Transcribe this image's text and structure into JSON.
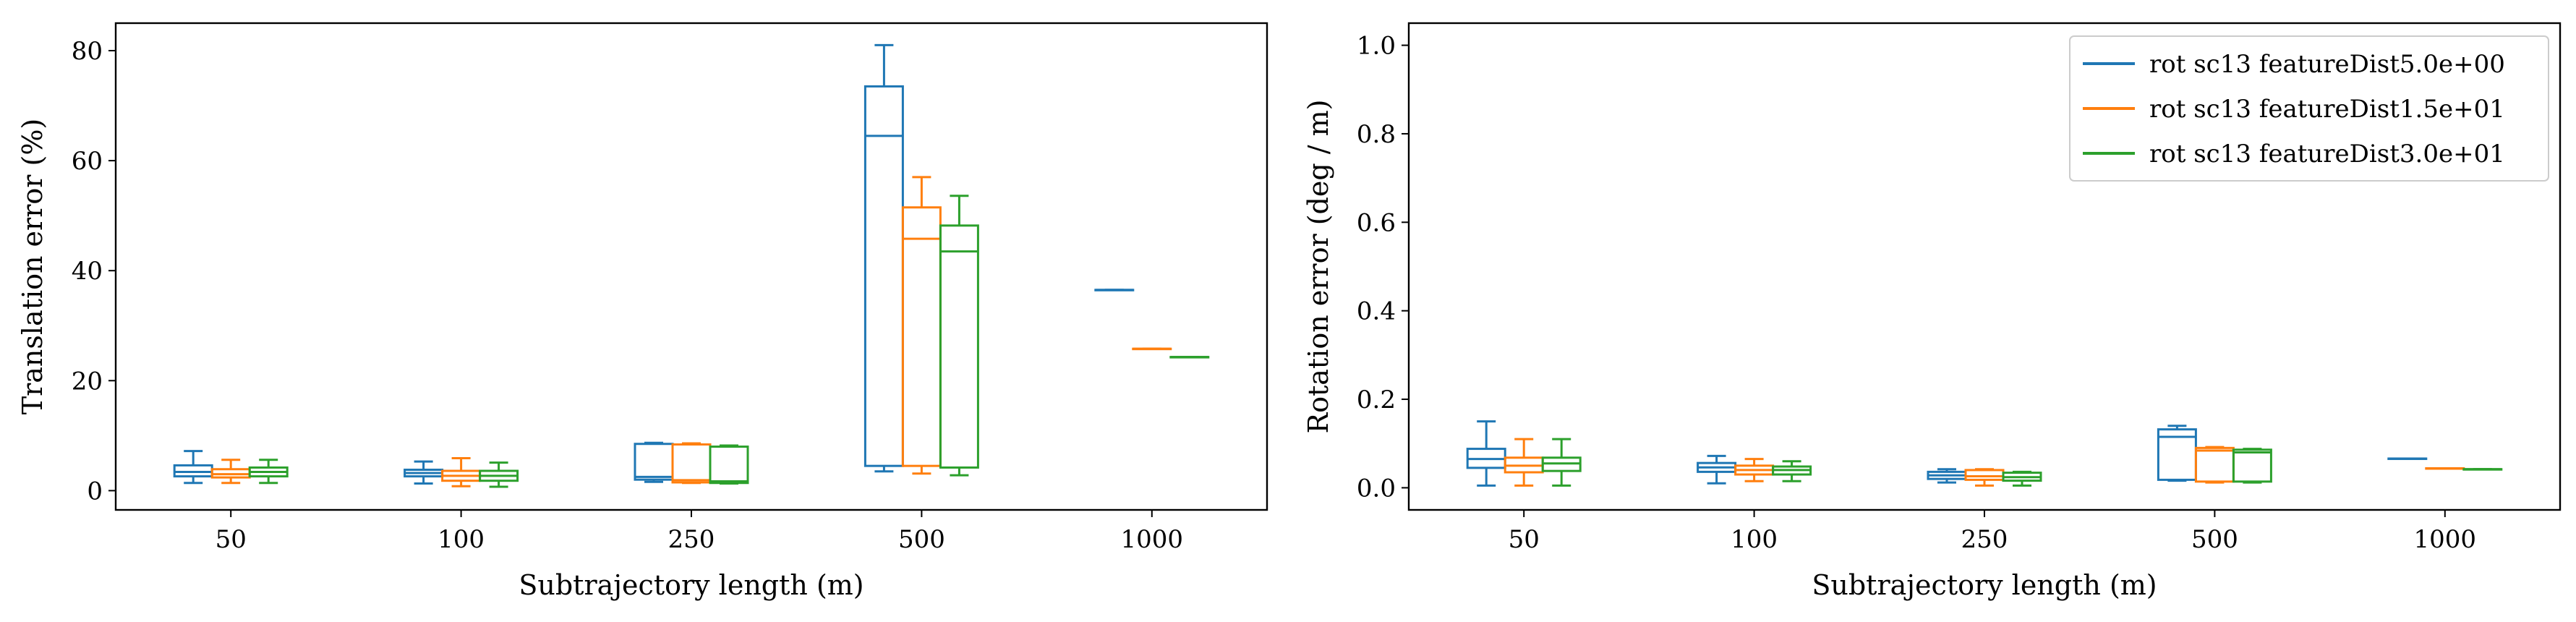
{
  "chart_data": [
    {
      "type": "box",
      "xlabel": "Subtrajectory length (m)",
      "ylabel": "Translation error (%)",
      "categories": [
        "50",
        "100",
        "250",
        "500",
        "1000"
      ],
      "ylim": [
        -3.5,
        85
      ],
      "yticks": [
        0,
        20,
        40,
        60,
        80
      ],
      "grid": false,
      "series": [
        {
          "color": "#1f77b4",
          "boxes": [
            {
              "whislo": 1.4,
              "q1": 2.6,
              "med": 3.4,
              "q3": 4.6,
              "whishi": 7.2
            },
            {
              "whislo": 1.3,
              "q1": 2.6,
              "med": 3.2,
              "q3": 3.8,
              "whishi": 5.3
            },
            {
              "whislo": 1.6,
              "q1": 2.0,
              "med": 2.5,
              "q3": 8.5,
              "whishi": 8.7
            },
            {
              "whislo": 3.5,
              "q1": 4.5,
              "med": 64.5,
              "q3": 73.5,
              "whishi": 81
            },
            {
              "whislo": 36.5,
              "q1": 36.5,
              "med": 36.5,
              "q3": 36.5,
              "whishi": 36.5
            }
          ]
        },
        {
          "color": "#ff7f0e",
          "boxes": [
            {
              "whislo": 1.4,
              "q1": 2.4,
              "med": 3.0,
              "q3": 3.9,
              "whishi": 5.6
            },
            {
              "whislo": 0.8,
              "q1": 1.8,
              "med": 2.7,
              "q3": 3.6,
              "whishi": 5.9
            },
            {
              "whislo": 1.4,
              "q1": 1.5,
              "med": 1.9,
              "q3": 8.4,
              "whishi": 8.6
            },
            {
              "whislo": 3.1,
              "q1": 4.5,
              "med": 45.8,
              "q3": 51.5,
              "whishi": 57
            },
            {
              "whislo": 25.8,
              "q1": 25.8,
              "med": 25.8,
              "q3": 25.8,
              "whishi": 25.8
            }
          ]
        },
        {
          "color": "#2ca02c",
          "boxes": [
            {
              "whislo": 1.4,
              "q1": 2.6,
              "med": 3.4,
              "q3": 4.2,
              "whishi": 5.6
            },
            {
              "whislo": 0.7,
              "q1": 1.8,
              "med": 2.7,
              "q3": 3.6,
              "whishi": 5.1
            },
            {
              "whislo": 1.3,
              "q1": 1.4,
              "med": 1.7,
              "q3": 8.0,
              "whishi": 8.2
            },
            {
              "whislo": 2.8,
              "q1": 4.2,
              "med": 43.5,
              "q3": 48.2,
              "whishi": 53.6
            },
            {
              "whislo": 24.3,
              "q1": 24.3,
              "med": 24.3,
              "q3": 24.3,
              "whishi": 24.3
            }
          ]
        }
      ]
    },
    {
      "type": "box",
      "xlabel": "Subtrajectory length (m)",
      "ylabel": "Rotation error (deg / m)",
      "categories": [
        "50",
        "100",
        "250",
        "500",
        "1000"
      ],
      "ylim": [
        -0.05,
        1.05
      ],
      "yticks": [
        "0.0",
        "0.2",
        "0.4",
        "0.6",
        "0.8",
        "1.0"
      ],
      "grid": false,
      "legend": {
        "placement": "top-right",
        "entries": [
          {
            "label": "rot sc13 featureDist5.0e+00",
            "color": "#1f77b4"
          },
          {
            "label": "rot sc13 featureDist1.5e+01",
            "color": "#ff7f0e"
          },
          {
            "label": "rot sc13 featureDist3.0e+01",
            "color": "#2ca02c"
          }
        ]
      },
      "series": [
        {
          "color": "#1f77b4",
          "boxes": [
            {
              "whislo": 0.005,
              "q1": 0.045,
              "med": 0.065,
              "q3": 0.088,
              "whishi": 0.15
            },
            {
              "whislo": 0.01,
              "q1": 0.036,
              "med": 0.046,
              "q3": 0.056,
              "whishi": 0.072
            },
            {
              "whislo": 0.012,
              "q1": 0.02,
              "med": 0.028,
              "q3": 0.036,
              "whishi": 0.042
            },
            {
              "whislo": 0.016,
              "q1": 0.018,
              "med": 0.115,
              "q3": 0.132,
              "whishi": 0.14
            },
            {
              "whislo": 0.066,
              "q1": 0.066,
              "med": 0.066,
              "q3": 0.066,
              "whishi": 0.066
            }
          ]
        },
        {
          "color": "#ff7f0e",
          "boxes": [
            {
              "whislo": 0.005,
              "q1": 0.035,
              "med": 0.05,
              "q3": 0.068,
              "whishi": 0.11
            },
            {
              "whislo": 0.015,
              "q1": 0.03,
              "med": 0.04,
              "q3": 0.05,
              "whishi": 0.065
            },
            {
              "whislo": 0.005,
              "q1": 0.018,
              "med": 0.026,
              "q3": 0.04,
              "whishi": 0.042
            },
            {
              "whislo": 0.012,
              "q1": 0.014,
              "med": 0.084,
              "q3": 0.09,
              "whishi": 0.092
            },
            {
              "whislo": 0.044,
              "q1": 0.044,
              "med": 0.044,
              "q3": 0.044,
              "whishi": 0.044
            }
          ]
        },
        {
          "color": "#2ca02c",
          "boxes": [
            {
              "whislo": 0.005,
              "q1": 0.038,
              "med": 0.055,
              "q3": 0.068,
              "whishi": 0.11
            },
            {
              "whislo": 0.015,
              "q1": 0.03,
              "med": 0.04,
              "q3": 0.048,
              "whishi": 0.06
            },
            {
              "whislo": 0.005,
              "q1": 0.016,
              "med": 0.024,
              "q3": 0.034,
              "whishi": 0.036
            },
            {
              "whislo": 0.012,
              "q1": 0.014,
              "med": 0.08,
              "q3": 0.086,
              "whishi": 0.088
            },
            {
              "whislo": 0.042,
              "q1": 0.042,
              "med": 0.042,
              "q3": 0.042,
              "whishi": 0.042
            }
          ]
        }
      ]
    }
  ]
}
